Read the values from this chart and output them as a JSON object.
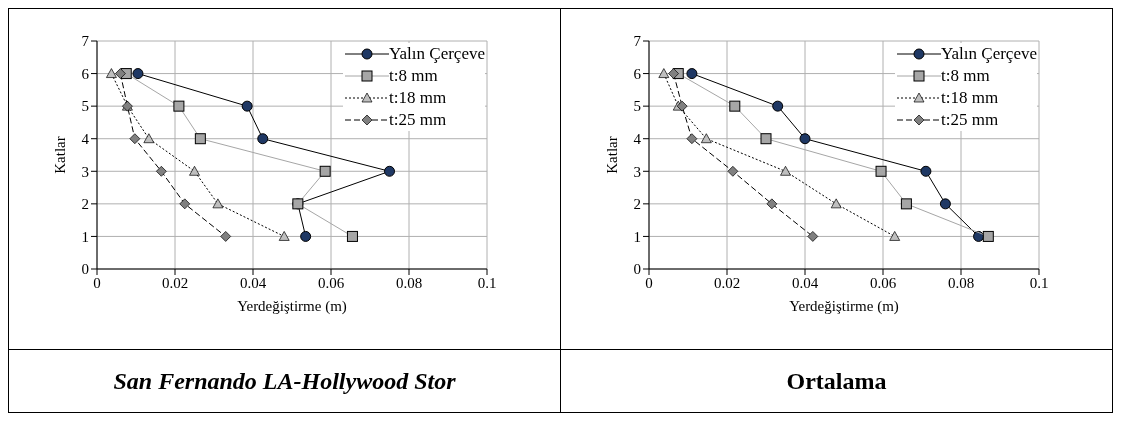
{
  "chart_data": [
    {
      "type": "line",
      "title": "San Fernando LA-Hollywood Stor",
      "xlabel": "Yerdeğiştirme (m)",
      "ylabel": "Katlar",
      "xlim": [
        0,
        0.1
      ],
      "xticks": [
        0,
        0.02,
        0.04,
        0.06,
        0.08,
        0.1
      ],
      "ylim": [
        0,
        7
      ],
      "yticks": [
        0,
        1,
        2,
        3,
        4,
        5,
        6,
        7
      ],
      "grid": true,
      "legend": "top right",
      "series": [
        {
          "name": "Yalın Çerçeve",
          "color": "#1f3864",
          "marker": "circle",
          "line_style": "solid",
          "x": [
            0.0105,
            0.0385,
            0.0425,
            0.075,
            0.0515,
            0.0535
          ],
          "values": [
            6,
            5,
            4,
            3,
            2,
            1
          ]
        },
        {
          "name": "t:8 mm",
          "color": "#a6a6a6",
          "marker": "square",
          "line_style": "solid",
          "x": [
            0.0075,
            0.021,
            0.0265,
            0.0585,
            0.0515,
            0.0655
          ],
          "values": [
            6,
            5,
            4,
            3,
            2,
            1
          ]
        },
        {
          "name": "t:18 mm",
          "color": "#bfbfbf",
          "marker": "triangle",
          "line_style": "dotted",
          "x": [
            0.0037,
            0.0078,
            0.0133,
            0.025,
            0.031,
            0.048
          ],
          "values": [
            6,
            5,
            4,
            3,
            2,
            1
          ]
        },
        {
          "name": "t:25 mm",
          "color": "#808080",
          "marker": "diamond",
          "line_style": "dashed",
          "x": [
            0.006,
            0.0078,
            0.0097,
            0.0165,
            0.0225,
            0.033
          ],
          "values": [
            6,
            5,
            4,
            3,
            2,
            1
          ]
        }
      ]
    },
    {
      "type": "line",
      "title": "Ortalama",
      "xlabel": "Yerdeğiştirme (m)",
      "ylabel": "Katlar",
      "xlim": [
        0,
        0.1
      ],
      "xticks": [
        0,
        0.02,
        0.04,
        0.06,
        0.08,
        0.1
      ],
      "ylim": [
        0,
        7
      ],
      "yticks": [
        0,
        1,
        2,
        3,
        4,
        5,
        6,
        7
      ],
      "grid": true,
      "legend": "top right",
      "series": [
        {
          "name": "Yalın Çerçeve",
          "color": "#1f3864",
          "marker": "circle",
          "line_style": "solid",
          "x": [
            0.011,
            0.033,
            0.04,
            0.071,
            0.076,
            0.0845
          ],
          "values": [
            6,
            5,
            4,
            3,
            2,
            1
          ]
        },
        {
          "name": "t:8 mm",
          "color": "#a6a6a6",
          "marker": "square",
          "line_style": "solid",
          "x": [
            0.0075,
            0.022,
            0.03,
            0.0595,
            0.066,
            0.087
          ],
          "values": [
            6,
            5,
            4,
            3,
            2,
            1
          ]
        },
        {
          "name": "t:18 mm",
          "color": "#bfbfbf",
          "marker": "triangle",
          "line_style": "dotted",
          "x": [
            0.0038,
            0.0075,
            0.0147,
            0.035,
            0.048,
            0.063
          ],
          "values": [
            6,
            5,
            4,
            3,
            2,
            1
          ]
        },
        {
          "name": "t:25 mm",
          "color": "#808080",
          "marker": "diamond",
          "line_style": "dashed",
          "x": [
            0.0063,
            0.0085,
            0.011,
            0.0215,
            0.0315,
            0.042
          ],
          "values": [
            6,
            5,
            4,
            3,
            2,
            1
          ]
        }
      ]
    }
  ]
}
